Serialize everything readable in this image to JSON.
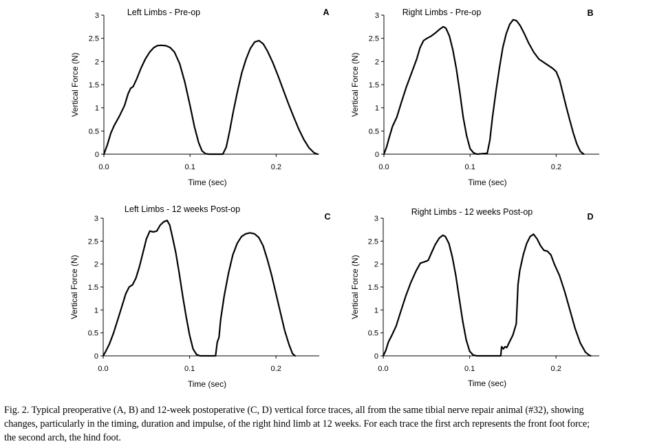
{
  "chart_data": [
    {
      "type": "line",
      "panel_letter": "A",
      "title": "Left Limbs - Pre-op",
      "xlabel": "Time (sec)",
      "ylabel": "Vertical Force (N)",
      "xlim": [
        0,
        0.25
      ],
      "ylim": [
        0,
        3
      ],
      "x_ticks": [
        "0.0",
        "0.1",
        "0.2"
      ],
      "y_ticks": [
        "0",
        "0.5",
        "1",
        "1.5",
        "2",
        "2.5",
        "3"
      ],
      "series": [
        {
          "points": [
            [
              0,
              0
            ],
            [
              0.002,
              0.1
            ],
            [
              0.004,
              0.2
            ],
            [
              0.008,
              0.45
            ],
            [
              0.012,
              0.62
            ],
            [
              0.018,
              0.82
            ],
            [
              0.024,
              1.05
            ],
            [
              0.028,
              1.3
            ],
            [
              0.031,
              1.42
            ],
            [
              0.034,
              1.46
            ],
            [
              0.038,
              1.62
            ],
            [
              0.043,
              1.85
            ],
            [
              0.048,
              2.05
            ],
            [
              0.053,
              2.2
            ],
            [
              0.058,
              2.3
            ],
            [
              0.062,
              2.34
            ],
            [
              0.066,
              2.35
            ],
            [
              0.072,
              2.34
            ],
            [
              0.077,
              2.3
            ],
            [
              0.082,
              2.2
            ],
            [
              0.088,
              1.95
            ],
            [
              0.094,
              1.55
            ],
            [
              0.1,
              1.05
            ],
            [
              0.105,
              0.6
            ],
            [
              0.11,
              0.25
            ],
            [
              0.114,
              0.07
            ],
            [
              0.118,
              0.01
            ],
            [
              0.122,
              0
            ],
            [
              0.138,
              0
            ],
            [
              0.142,
              0.15
            ],
            [
              0.146,
              0.5
            ],
            [
              0.15,
              0.9
            ],
            [
              0.155,
              1.35
            ],
            [
              0.16,
              1.75
            ],
            [
              0.165,
              2.05
            ],
            [
              0.17,
              2.28
            ],
            [
              0.175,
              2.42
            ],
            [
              0.18,
              2.45
            ],
            [
              0.185,
              2.38
            ],
            [
              0.19,
              2.22
            ],
            [
              0.196,
              1.98
            ],
            [
              0.202,
              1.7
            ],
            [
              0.208,
              1.4
            ],
            [
              0.214,
              1.1
            ],
            [
              0.22,
              0.82
            ],
            [
              0.226,
              0.55
            ],
            [
              0.232,
              0.32
            ],
            [
              0.238,
              0.14
            ],
            [
              0.244,
              0.03
            ],
            [
              0.248,
              0
            ]
          ]
        }
      ]
    },
    {
      "type": "line",
      "panel_letter": "B",
      "title": "Right Limbs - Pre-op",
      "xlabel": "Time (sec)",
      "ylabel": "Vertical Force (N)",
      "xlim": [
        0,
        0.25
      ],
      "ylim": [
        0,
        3
      ],
      "x_ticks": [
        "0.0",
        "0.1",
        "0.2"
      ],
      "y_ticks": [
        "0",
        "0.5",
        "1",
        "1.5",
        "2",
        "2.5",
        "3"
      ],
      "series": [
        {
          "points": [
            [
              0,
              0
            ],
            [
              0.003,
              0.15
            ],
            [
              0.006,
              0.35
            ],
            [
              0.01,
              0.6
            ],
            [
              0.015,
              0.8
            ],
            [
              0.02,
              1.1
            ],
            [
              0.026,
              1.45
            ],
            [
              0.032,
              1.75
            ],
            [
              0.038,
              2.05
            ],
            [
              0.042,
              2.3
            ],
            [
              0.046,
              2.45
            ],
            [
              0.05,
              2.5
            ],
            [
              0.055,
              2.55
            ],
            [
              0.06,
              2.62
            ],
            [
              0.065,
              2.7
            ],
            [
              0.069,
              2.75
            ],
            [
              0.072,
              2.72
            ],
            [
              0.076,
              2.55
            ],
            [
              0.08,
              2.25
            ],
            [
              0.084,
              1.85
            ],
            [
              0.088,
              1.35
            ],
            [
              0.092,
              0.8
            ],
            [
              0.096,
              0.4
            ],
            [
              0.1,
              0.12
            ],
            [
              0.104,
              0.03
            ],
            [
              0.108,
              0
            ],
            [
              0.12,
              0.02
            ],
            [
              0.123,
              0.3
            ],
            [
              0.126,
              0.8
            ],
            [
              0.13,
              1.35
            ],
            [
              0.134,
              1.85
            ],
            [
              0.138,
              2.3
            ],
            [
              0.142,
              2.6
            ],
            [
              0.146,
              2.8
            ],
            [
              0.15,
              2.9
            ],
            [
              0.154,
              2.88
            ],
            [
              0.158,
              2.78
            ],
            [
              0.163,
              2.6
            ],
            [
              0.168,
              2.4
            ],
            [
              0.174,
              2.2
            ],
            [
              0.18,
              2.05
            ],
            [
              0.188,
              1.95
            ],
            [
              0.196,
              1.85
            ],
            [
              0.2,
              1.78
            ],
            [
              0.204,
              1.6
            ],
            [
              0.208,
              1.3
            ],
            [
              0.212,
              1.0
            ],
            [
              0.216,
              0.72
            ],
            [
              0.22,
              0.45
            ],
            [
              0.224,
              0.22
            ],
            [
              0.228,
              0.06
            ],
            [
              0.232,
              0
            ]
          ]
        }
      ]
    },
    {
      "type": "line",
      "panel_letter": "C",
      "title": "Left Limbs - 12 weeks Post-op",
      "xlabel": "Time (sec)",
      "ylabel": "Vertical Force (N)",
      "xlim": [
        0,
        0.25
      ],
      "ylim": [
        0,
        3
      ],
      "x_ticks": [
        "0.0",
        "0.1",
        "0.2"
      ],
      "y_ticks": [
        "0",
        "0.5",
        "1",
        "1.5",
        "2",
        "2.5",
        "3"
      ],
      "series": [
        {
          "points": [
            [
              0,
              0
            ],
            [
              0.003,
              0.1
            ],
            [
              0.007,
              0.25
            ],
            [
              0.012,
              0.5
            ],
            [
              0.017,
              0.8
            ],
            [
              0.022,
              1.1
            ],
            [
              0.026,
              1.35
            ],
            [
              0.03,
              1.5
            ],
            [
              0.034,
              1.55
            ],
            [
              0.038,
              1.7
            ],
            [
              0.042,
              1.95
            ],
            [
              0.046,
              2.25
            ],
            [
              0.05,
              2.55
            ],
            [
              0.054,
              2.72
            ],
            [
              0.058,
              2.7
            ],
            [
              0.062,
              2.72
            ],
            [
              0.066,
              2.85
            ],
            [
              0.07,
              2.92
            ],
            [
              0.074,
              2.95
            ],
            [
              0.077,
              2.85
            ],
            [
              0.08,
              2.6
            ],
            [
              0.084,
              2.25
            ],
            [
              0.088,
              1.8
            ],
            [
              0.092,
              1.3
            ],
            [
              0.096,
              0.85
            ],
            [
              0.1,
              0.45
            ],
            [
              0.104,
              0.15
            ],
            [
              0.108,
              0.03
            ],
            [
              0.112,
              0
            ],
            [
              0.13,
              0
            ],
            [
              0.132,
              0.3
            ],
            [
              0.134,
              0.4
            ],
            [
              0.136,
              0.8
            ],
            [
              0.14,
              1.3
            ],
            [
              0.145,
              1.8
            ],
            [
              0.15,
              2.2
            ],
            [
              0.155,
              2.45
            ],
            [
              0.16,
              2.6
            ],
            [
              0.165,
              2.66
            ],
            [
              0.17,
              2.68
            ],
            [
              0.175,
              2.66
            ],
            [
              0.18,
              2.58
            ],
            [
              0.185,
              2.4
            ],
            [
              0.19,
              2.1
            ],
            [
              0.195,
              1.75
            ],
            [
              0.2,
              1.35
            ],
            [
              0.205,
              0.95
            ],
            [
              0.21,
              0.55
            ],
            [
              0.215,
              0.25
            ],
            [
              0.219,
              0.05
            ],
            [
              0.222,
              0
            ]
          ]
        }
      ]
    },
    {
      "type": "line",
      "panel_letter": "D",
      "title": "Right Limbs - 12 weeks Post-op",
      "xlabel": "Time (sec)",
      "ylabel": "Vertical Force (N)",
      "xlim": [
        0,
        0.25
      ],
      "ylim": [
        0,
        3
      ],
      "x_ticks": [
        "0.0",
        "0.1",
        "0.2"
      ],
      "y_ticks": [
        "0",
        "0.5",
        "1",
        "1.5",
        "2",
        "2.5",
        "3"
      ],
      "series": [
        {
          "points": [
            [
              0,
              0
            ],
            [
              0.003,
              0.12
            ],
            [
              0.006,
              0.3
            ],
            [
              0.01,
              0.45
            ],
            [
              0.015,
              0.65
            ],
            [
              0.02,
              0.95
            ],
            [
              0.026,
              1.3
            ],
            [
              0.032,
              1.6
            ],
            [
              0.038,
              1.85
            ],
            [
              0.043,
              2.02
            ],
            [
              0.048,
              2.05
            ],
            [
              0.052,
              2.08
            ],
            [
              0.056,
              2.25
            ],
            [
              0.06,
              2.42
            ],
            [
              0.065,
              2.57
            ],
            [
              0.069,
              2.63
            ],
            [
              0.072,
              2.6
            ],
            [
              0.076,
              2.45
            ],
            [
              0.08,
              2.15
            ],
            [
              0.084,
              1.75
            ],
            [
              0.088,
              1.25
            ],
            [
              0.092,
              0.75
            ],
            [
              0.096,
              0.35
            ],
            [
              0.1,
              0.1
            ],
            [
              0.104,
              0.02
            ],
            [
              0.108,
              0
            ],
            [
              0.136,
              0
            ],
            [
              0.137,
              0.2
            ],
            [
              0.139,
              0.15
            ],
            [
              0.141,
              0.2
            ],
            [
              0.143,
              0.18
            ],
            [
              0.146,
              0.3
            ],
            [
              0.15,
              0.45
            ],
            [
              0.154,
              0.7
            ],
            [
              0.156,
              1.55
            ],
            [
              0.158,
              1.85
            ],
            [
              0.162,
              2.2
            ],
            [
              0.166,
              2.45
            ],
            [
              0.17,
              2.6
            ],
            [
              0.174,
              2.65
            ],
            [
              0.178,
              2.55
            ],
            [
              0.182,
              2.4
            ],
            [
              0.186,
              2.3
            ],
            [
              0.19,
              2.28
            ],
            [
              0.194,
              2.2
            ],
            [
              0.198,
              2.0
            ],
            [
              0.204,
              1.75
            ],
            [
              0.21,
              1.4
            ],
            [
              0.216,
              1.0
            ],
            [
              0.222,
              0.6
            ],
            [
              0.228,
              0.28
            ],
            [
              0.234,
              0.08
            ],
            [
              0.238,
              0.02
            ],
            [
              0.24,
              0
            ]
          ]
        }
      ]
    }
  ],
  "caption": {
    "lines": [
      "Fig. 2.  Typical preoperative (A, B) and 12-week postoperative (C, D) vertical force traces, all from the same tibial nerve repair animal (#32), showing",
      "changes, particularly in the timing, duration and impulse, of the right hind limb at 12 weeks. For each trace the first arch represents the front foot force;",
      "the second arch, the hind foot."
    ]
  }
}
